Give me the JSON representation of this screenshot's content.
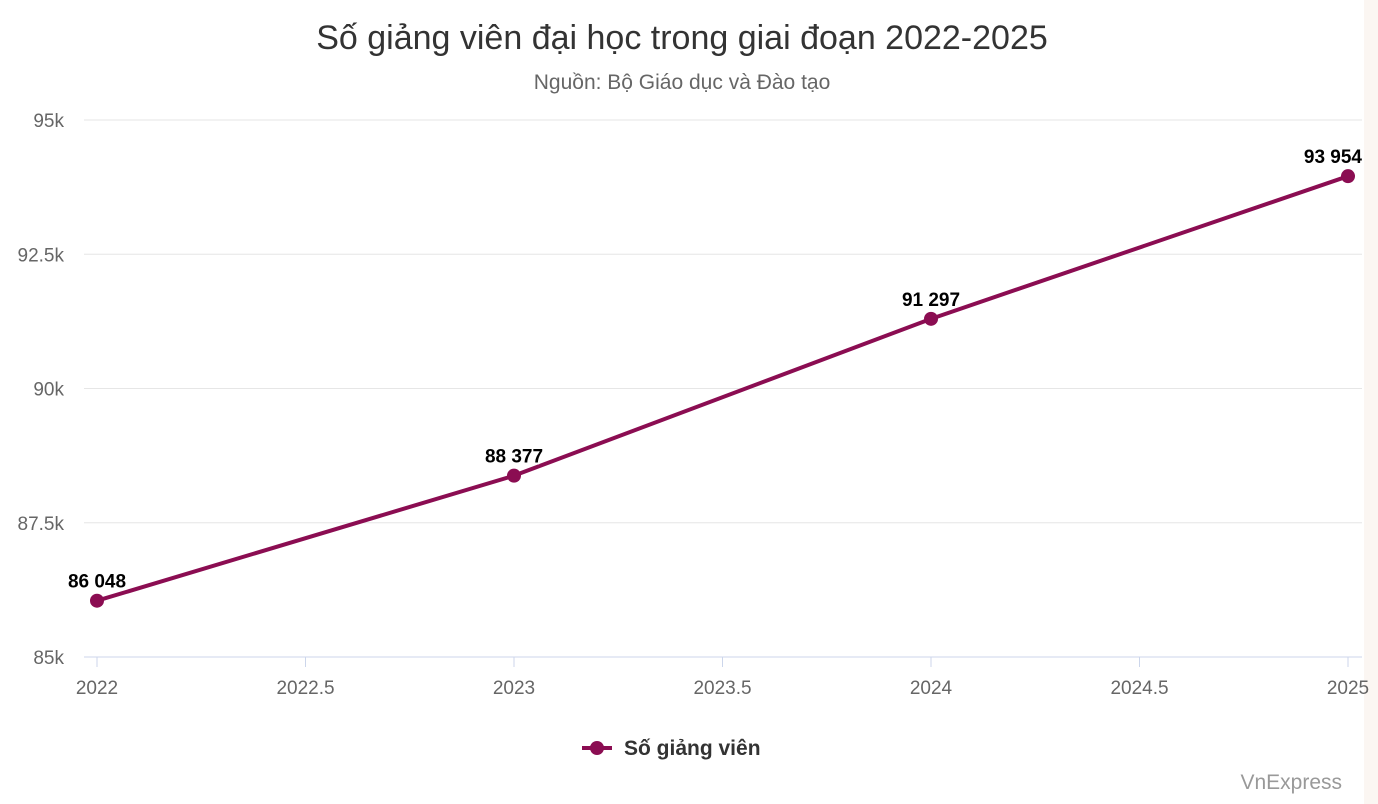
{
  "chart_data": {
    "type": "line",
    "title": "Số giảng viên đại học trong giai đoạn 2022-2025",
    "subtitle": "Nguồn: Bộ Giáo dục và Đào tạo",
    "x": [
      2022,
      2023,
      2024,
      2025
    ],
    "series": [
      {
        "name": "Số giảng viên",
        "values": [
          86048,
          88377,
          91297,
          93954
        ],
        "data_labels": [
          "86 048",
          "88 377",
          "91 297",
          "93 954"
        ],
        "color": "#8b0d52"
      }
    ],
    "xlim": [
      2022,
      2025
    ],
    "ylim": [
      85000,
      95000
    ],
    "x_ticks": [
      2022,
      2022.5,
      2023,
      2023.5,
      2024,
      2024.5,
      2025
    ],
    "x_tick_labels": [
      "2022",
      "2022.5",
      "2023",
      "2023.5",
      "2024",
      "2024.5",
      "2025"
    ],
    "y_ticks": [
      85000,
      87500,
      90000,
      92500,
      95000
    ],
    "y_tick_labels": [
      "85k",
      "87.5k",
      "90k",
      "92.5k",
      "95k"
    ],
    "grid": "horizontal",
    "legend_position": "bottom-center",
    "credit": "VnExpress"
  }
}
